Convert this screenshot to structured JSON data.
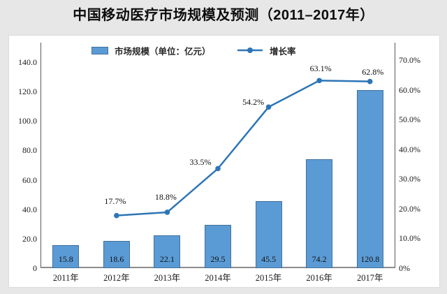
{
  "page": {
    "title": "中国移动医疗市场规模及预测（2011–2017年）"
  },
  "legend": {
    "bar_label": "市场规模（单位：亿元）",
    "line_label": "增长率"
  },
  "colors": {
    "background": "#e7e7e7",
    "panel": "#ffffff",
    "bar_fill": "#5b9bd5",
    "bar_border": "#41719c",
    "line": "#2e75b6",
    "axis_line": "#595959"
  },
  "chart_data": {
    "type": "bar+line combo",
    "title": "中国移动医疗市场规模及预测（2011–2017年）",
    "categories": [
      "2011年",
      "2012年",
      "2013年",
      "2014年",
      "2015年",
      "2016年",
      "2017年"
    ],
    "series": [
      {
        "name": "市场规模（单位：亿元）",
        "type": "bar",
        "axis": "left",
        "unit": "亿元",
        "values": [
          15.8,
          18.6,
          22.1,
          29.5,
          45.5,
          74.2,
          120.8
        ],
        "data_labels": [
          "15.8",
          "18.6",
          "22.1",
          "29.5",
          "45.5",
          "74.2",
          "120.8"
        ]
      },
      {
        "name": "增长率",
        "type": "line",
        "axis": "right",
        "values": [
          null,
          17.7,
          18.8,
          33.5,
          54.2,
          63.1,
          62.8
        ],
        "data_labels": [
          "17.7%",
          "18.8%",
          "33.5%",
          "54.2%",
          "63.1%",
          "62.8%"
        ]
      }
    ],
    "left_axis": {
      "min": 0,
      "max": 140,
      "major_unit": 20,
      "tick_labels": [
        "140.0",
        "120.0",
        "100.0",
        "80.0",
        "60.0",
        "40.0",
        "20.0",
        "0"
      ]
    },
    "right_axis": {
      "min": 0,
      "max": 70,
      "major_unit": 10,
      "tick_labels": [
        "70.0%",
        "60.0%",
        "50.0%",
        "40.0%",
        "30.0%",
        "20.0%",
        "10.0%",
        "0%"
      ]
    },
    "grid": false,
    "legend_position": "top-inside"
  }
}
